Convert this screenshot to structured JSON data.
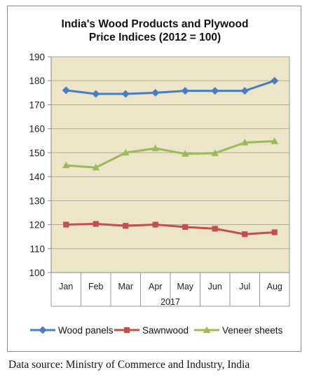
{
  "chart_data": {
    "type": "line",
    "title_lines": [
      "India's Wood Products and Plywood",
      "Price Indices (2012 = 100)"
    ],
    "xlabel": "2017",
    "ylabel": "",
    "categories": [
      "Jan",
      "Feb",
      "Mar",
      "Apr",
      "May",
      "Jun",
      "Jul",
      "Aug"
    ],
    "ylim": [
      100,
      190
    ],
    "yticks": [
      100,
      110,
      120,
      130,
      140,
      150,
      160,
      170,
      180,
      190
    ],
    "grid": true,
    "legend_position": "bottom",
    "plot_background": "#ece5c8",
    "series": [
      {
        "name": "Wood panels",
        "color": "#4a7dc2",
        "marker": "diamond",
        "values": [
          176,
          174.5,
          174.5,
          175,
          175.8,
          175.8,
          175.8,
          180
        ]
      },
      {
        "name": "Sawnwood",
        "color": "#c0504d",
        "marker": "square",
        "values": [
          120,
          120.3,
          119.5,
          120,
          119,
          118.3,
          116,
          116.8
        ]
      },
      {
        "name": "Veneer sheets",
        "color": "#9bbb59",
        "marker": "triangle",
        "values": [
          144.7,
          143.8,
          150,
          151.8,
          149.5,
          149.8,
          154.2,
          154.8
        ]
      }
    ]
  },
  "source_note": "Data source: Ministry of Commerce and Industry, India"
}
